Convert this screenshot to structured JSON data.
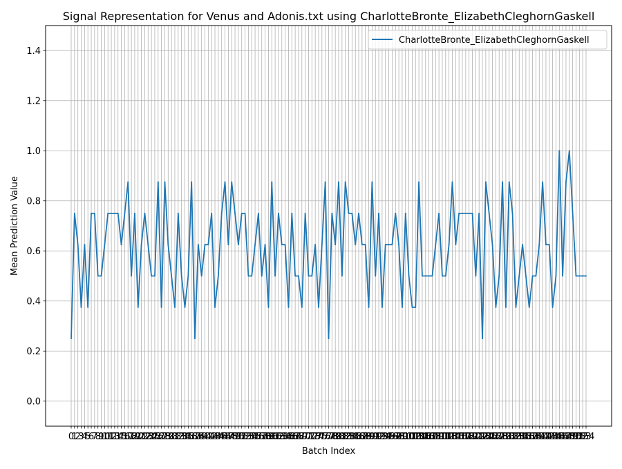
{
  "chart_data": {
    "type": "line",
    "title": "Signal Representation for Venus and Adonis.txt using CharlotteBronte_ElizabethCleghornGaskell",
    "xlabel": "Batch Index",
    "ylabel": "Mean Prediction Value",
    "xlim": [
      -7.65,
      161.65
    ],
    "ylim": [
      -0.1,
      1.5
    ],
    "yticks": [
      0.0,
      0.2,
      0.4,
      0.6,
      0.8,
      1.0,
      1.2,
      1.4
    ],
    "ytick_labels": [
      "0.0",
      "0.2",
      "0.4",
      "0.6",
      "0.8",
      "1.0",
      "1.2",
      "1.4"
    ],
    "grid": true,
    "legend_position": "top-right",
    "series_color": "#1f77b4",
    "series": [
      {
        "name": "CharlotteBronte_ElizabethCleghornGaskell",
        "x": [
          0,
          1,
          2,
          3,
          4,
          5,
          6,
          7,
          8,
          9,
          10,
          11,
          12,
          13,
          14,
          15,
          16,
          17,
          18,
          19,
          20,
          21,
          22,
          23,
          24,
          25,
          26,
          27,
          28,
          29,
          30,
          31,
          32,
          33,
          34,
          35,
          36,
          37,
          38,
          39,
          40,
          41,
          42,
          43,
          44,
          45,
          46,
          47,
          48,
          49,
          50,
          51,
          52,
          53,
          54,
          55,
          56,
          57,
          58,
          59,
          60,
          61,
          62,
          63,
          64,
          65,
          66,
          67,
          68,
          69,
          70,
          71,
          72,
          73,
          74,
          75,
          76,
          77,
          78,
          79,
          80,
          81,
          82,
          83,
          84,
          85,
          86,
          87,
          88,
          89,
          90,
          91,
          92,
          93,
          94,
          95,
          96,
          97,
          98,
          99,
          100,
          101,
          102,
          103,
          104,
          105,
          106,
          107,
          108,
          109,
          110,
          111,
          112,
          113,
          114,
          115,
          116,
          117,
          118,
          119,
          120,
          121,
          122,
          123,
          124,
          125,
          126,
          127,
          128,
          129,
          130,
          131,
          132,
          133,
          134,
          135,
          136,
          137,
          138,
          139,
          140,
          141,
          142,
          143,
          144,
          145,
          146,
          147,
          148,
          149,
          150,
          151,
          152,
          153,
          154
        ],
        "values": [
          0.25,
          0.75,
          0.625,
          0.375,
          0.625,
          0.375,
          0.75,
          0.75,
          0.5,
          0.5,
          0.625,
          0.75,
          0.75,
          0.75,
          0.75,
          0.625,
          0.75,
          0.875,
          0.5,
          0.75,
          0.375,
          0.625,
          0.75,
          0.625,
          0.5,
          0.5,
          0.875,
          0.375,
          0.875,
          0.625,
          0.5,
          0.375,
          0.75,
          0.5,
          0.375,
          0.5,
          0.875,
          0.25,
          0.625,
          0.5,
          0.625,
          0.625,
          0.75,
          0.375,
          0.5,
          0.75,
          0.875,
          0.625,
          0.875,
          0.75,
          0.625,
          0.75,
          0.75,
          0.5,
          0.5,
          0.625,
          0.75,
          0.5,
          0.625,
          0.375,
          0.875,
          0.5,
          0.75,
          0.625,
          0.625,
          0.375,
          0.75,
          0.5,
          0.5,
          0.375,
          0.75,
          0.5,
          0.5,
          0.625,
          0.375,
          0.625,
          0.875,
          0.25,
          0.75,
          0.625,
          0.875,
          0.5,
          0.875,
          0.75,
          0.75,
          0.625,
          0.75,
          0.625,
          0.625,
          0.375,
          0.875,
          0.5,
          0.75,
          0.375,
          0.625,
          0.625,
          0.625,
          0.75,
          0.625,
          0.375,
          0.75,
          0.5,
          0.375,
          0.375,
          0.875,
          0.5,
          0.5,
          0.5,
          0.5,
          0.625,
          0.75,
          0.5,
          0.5,
          0.625,
          0.875,
          0.625,
          0.75,
          0.75,
          0.75,
          0.75,
          0.75,
          0.5,
          0.75,
          0.25,
          0.875,
          0.75,
          0.625,
          0.375,
          0.5,
          0.875,
          0.375,
          0.875,
          0.75,
          0.375,
          0.5,
          0.625,
          0.5,
          0.375,
          0.5,
          0.5,
          0.625,
          0.875,
          0.625,
          0.625,
          0.375,
          0.5,
          1.0,
          0.5,
          0.875,
          1.0,
          0.75,
          0.5,
          0.5,
          0.5,
          0.5
        ]
      }
    ]
  }
}
